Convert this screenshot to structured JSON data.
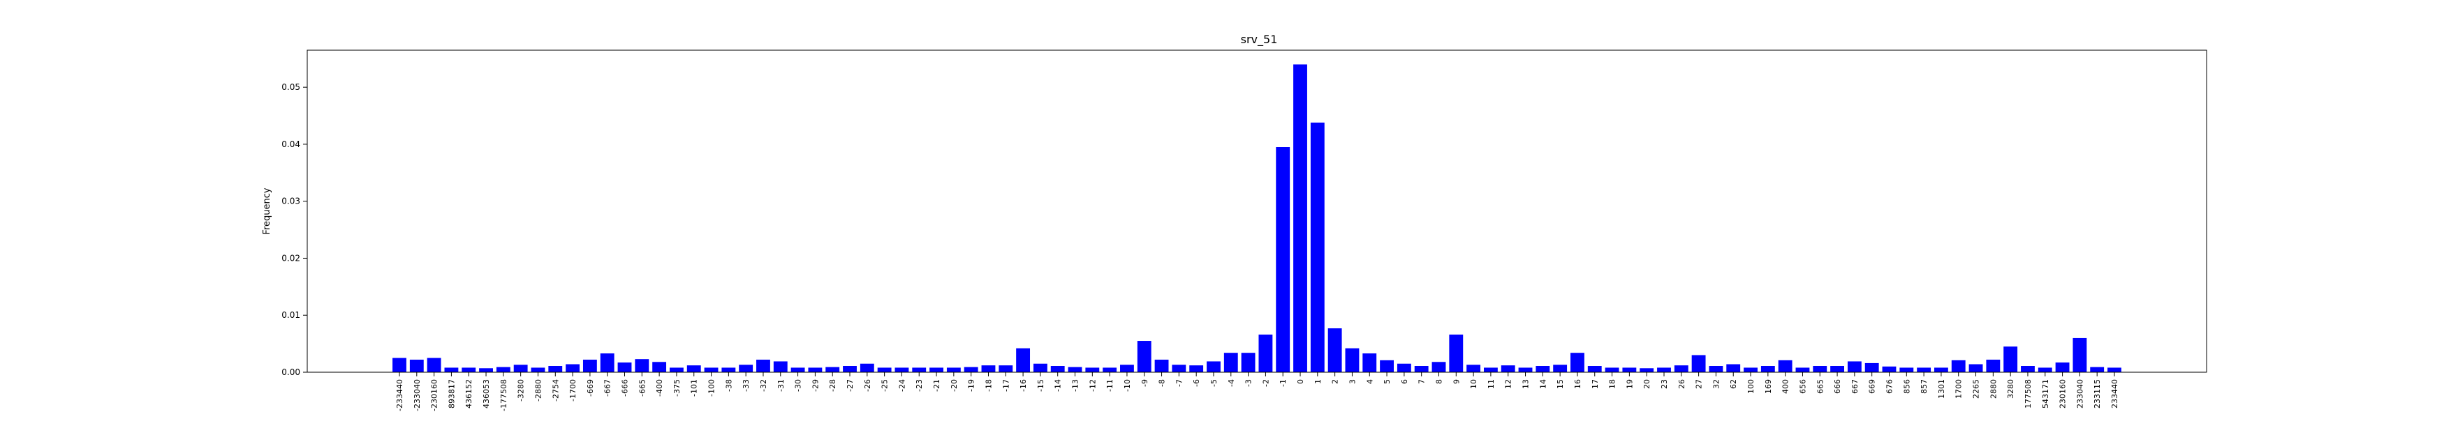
{
  "chart_data": {
    "type": "bar",
    "title": "srv_51",
    "xlabel": "",
    "ylabel": "Frequency",
    "ylim": [
      0,
      0.0565
    ],
    "yticks": [
      0.0,
      0.01,
      0.02,
      0.03,
      0.04,
      0.05
    ],
    "ytick_labels": [
      "0.00",
      "0.01",
      "0.02",
      "0.03",
      "0.04",
      "0.05"
    ],
    "grid": false,
    "bar_color": "#0000ff",
    "categories": [
      "-233440",
      "-233040",
      "-230160",
      "893817",
      "436152",
      "436053",
      "-177508",
      "-3280",
      "-2880",
      "-2754",
      "-1700",
      "-669",
      "-667",
      "-666",
      "-665",
      "-400",
      "-375",
      "-101",
      "-100",
      "-38",
      "-33",
      "-32",
      "-31",
      "-30",
      "-29",
      "-28",
      "-27",
      "-26",
      "-25",
      "-24",
      "-23",
      "-21",
      "-20",
      "-19",
      "-18",
      "-17",
      "-16",
      "-15",
      "-14",
      "-13",
      "-12",
      "-11",
      "-10",
      "-9",
      "-8",
      "-7",
      "-6",
      "-5",
      "-4",
      "-3",
      "-2",
      "-1",
      "0",
      "1",
      "2",
      "3",
      "4",
      "5",
      "6",
      "7",
      "8",
      "9",
      "10",
      "11",
      "12",
      "13",
      "14",
      "15",
      "16",
      "17",
      "18",
      "19",
      "20",
      "23",
      "26",
      "27",
      "32",
      "62",
      "100",
      "169",
      "400",
      "656",
      "665",
      "666",
      "667",
      "669",
      "676",
      "856",
      "857",
      "1301",
      "1700",
      "2265",
      "2880",
      "3280",
      "177508",
      "543171",
      "230160",
      "233040",
      "233115",
      "233440"
    ],
    "values": [
      0.0025,
      0.0022,
      0.0025,
      0.0008,
      0.0008,
      0.0007,
      0.0009,
      0.0013,
      0.0008,
      0.0011,
      0.0014,
      0.0022,
      0.0033,
      0.0017,
      0.0023,
      0.0018,
      0.0008,
      0.0012,
      0.0008,
      0.0008,
      0.0013,
      0.0022,
      0.0019,
      0.0008,
      0.0008,
      0.0009,
      0.0011,
      0.0015,
      0.0008,
      0.0008,
      0.0008,
      0.0008,
      0.0008,
      0.0009,
      0.0012,
      0.0012,
      0.0042,
      0.0015,
      0.0011,
      0.0009,
      0.0008,
      0.0008,
      0.0013,
      0.0055,
      0.0022,
      0.0013,
      0.0012,
      0.0019,
      0.0034,
      0.0034,
      0.0066,
      0.0395,
      0.054,
      0.0438,
      0.0077,
      0.0042,
      0.0033,
      0.0021,
      0.0015,
      0.0011,
      0.0018,
      0.0066,
      0.0013,
      0.0008,
      0.0012,
      0.0008,
      0.0011,
      0.0013,
      0.0034,
      0.0011,
      0.0008,
      0.0008,
      0.0007,
      0.0008,
      0.0012,
      0.003,
      0.0011,
      0.0014,
      0.0008,
      0.0011,
      0.0021,
      0.0008,
      0.0011,
      0.0011,
      0.0019,
      0.0016,
      0.001,
      0.0008,
      0.0008,
      0.0008,
      0.0021,
      0.0014,
      0.0022,
      0.0045,
      0.0011,
      0.0008,
      0.0017,
      0.006,
      0.0009,
      0.0008
    ]
  }
}
